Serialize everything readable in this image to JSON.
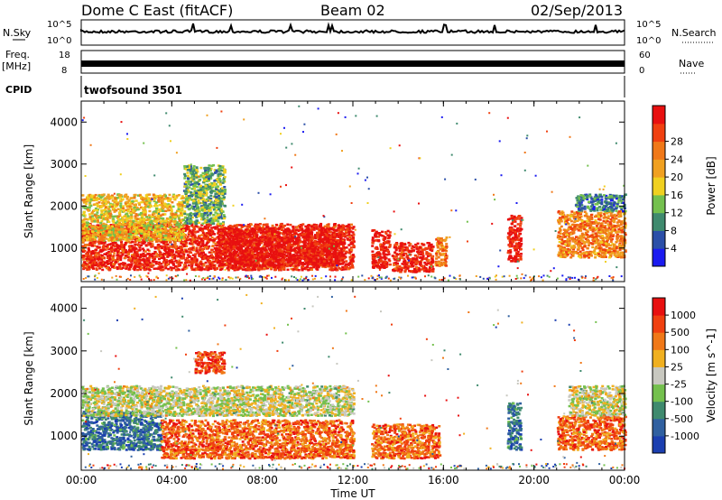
{
  "header": {
    "station": "Dome C East (fitACF)",
    "beam": "Beam 02",
    "date": "02/Sep/2013"
  },
  "strip_labels": {
    "nsky": "N.Sky",
    "nsky_hi": "10^5",
    "nsky_lo": "10^0",
    "nsearch": "N.Search",
    "nsearch_hi": "10^5",
    "nsearch_lo": "10^0",
    "freq_top": "Freq.",
    "freq_unit": "[MHz]",
    "freq_hi": "18",
    "freq_lo": "8",
    "nave": "Nave",
    "nave_hi": "60",
    "nave_lo": "0",
    "cpid": "CPID",
    "program": "twofsound 3501"
  },
  "chart_data": [
    {
      "type": "heatmap",
      "quantity": "Power",
      "ylabel": "Slant Range [km]",
      "xlabel": "Time UT",
      "x_ticks": [
        "00:00",
        "04:00",
        "08:00",
        "12:00",
        "16:00",
        "20:00",
        "00:00"
      ],
      "x_range_hours": [
        0,
        24
      ],
      "y_ticks": [
        1000,
        2000,
        3000,
        4000
      ],
      "ylim": [
        200,
        4500
      ],
      "colorbar": {
        "label": "Power [dB]",
        "ticks": [
          "4",
          "8",
          "12",
          "16",
          "20",
          "24",
          "28"
        ],
        "colors": [
          "#1b1bf0",
          "#2b4fa8",
          "#3f8a6e",
          "#74c04e",
          "#f0d020",
          "#f0a020",
          "#f07818",
          "#f04010",
          "#e81010"
        ]
      },
      "blobs": [
        {
          "t0": 0.0,
          "t1": 12.0,
          "r0": 500,
          "r1": 1600,
          "v": 0.9
        },
        {
          "t0": 0.0,
          "t1": 4.5,
          "r0": 1200,
          "r1": 2300,
          "v": 0.55
        },
        {
          "t0": 4.5,
          "t1": 6.3,
          "r0": 1600,
          "r1": 3000,
          "v": 0.35
        },
        {
          "t0": 6.0,
          "t1": 11.5,
          "r0": 600,
          "r1": 1500,
          "v": 0.98
        },
        {
          "t0": 12.8,
          "t1": 13.6,
          "r0": 550,
          "r1": 1450,
          "v": 0.95
        },
        {
          "t0": 13.7,
          "t1": 15.5,
          "r0": 450,
          "r1": 1150,
          "v": 0.9
        },
        {
          "t0": 15.6,
          "t1": 16.1,
          "r0": 600,
          "r1": 1300,
          "v": 0.7
        },
        {
          "t0": 18.8,
          "t1": 19.4,
          "r0": 700,
          "r1": 1800,
          "v": 0.95
        },
        {
          "t0": 21.0,
          "t1": 24.0,
          "r0": 800,
          "r1": 1900,
          "v": 0.7
        },
        {
          "t0": 21.8,
          "t1": 24.0,
          "r0": 1900,
          "r1": 2300,
          "v": 0.25
        }
      ]
    },
    {
      "type": "heatmap",
      "quantity": "Velocity",
      "ylabel": "Slant Range [km]",
      "xlabel": "Time UT",
      "x_ticks": [
        "00:00",
        "04:00",
        "08:00",
        "12:00",
        "16:00",
        "20:00",
        "00:00"
      ],
      "x_range_hours": [
        0,
        24
      ],
      "y_ticks": [
        1000,
        2000,
        3000,
        4000
      ],
      "ylim": [
        200,
        4500
      ],
      "colorbar": {
        "label": "Velocity [m s^-1]",
        "ticks": [
          "1000",
          "500",
          "100",
          "25",
          "-25",
          "-100",
          "-500",
          "-1000"
        ],
        "colors": [
          "#1b3fb0",
          "#3060a0",
          "#3f8a6e",
          "#74c04e",
          "#c8c8c0",
          "#f0b020",
          "#f07818",
          "#f04010",
          "#e81010"
        ]
      },
      "blobs": [
        {
          "t0": 0.0,
          "t1": 3.5,
          "r0": 700,
          "r1": 1600,
          "v": 0.2
        },
        {
          "t0": 0.0,
          "t1": 12.0,
          "r0": 1500,
          "r1": 2200,
          "v": 0.5
        },
        {
          "t0": 3.5,
          "t1": 12.0,
          "r0": 500,
          "r1": 1400,
          "v": 0.78
        },
        {
          "t0": 5.0,
          "t1": 6.3,
          "r0": 2500,
          "r1": 3000,
          "v": 0.85
        },
        {
          "t0": 12.8,
          "t1": 15.8,
          "r0": 500,
          "r1": 1300,
          "v": 0.76
        },
        {
          "t0": 18.8,
          "t1": 19.4,
          "r0": 700,
          "r1": 1800,
          "v": 0.2
        },
        {
          "t0": 21.0,
          "t1": 24.0,
          "r0": 700,
          "r1": 1500,
          "v": 0.77
        },
        {
          "t0": 21.5,
          "t1": 24.0,
          "r0": 1500,
          "r1": 2200,
          "v": 0.5
        }
      ]
    }
  ]
}
